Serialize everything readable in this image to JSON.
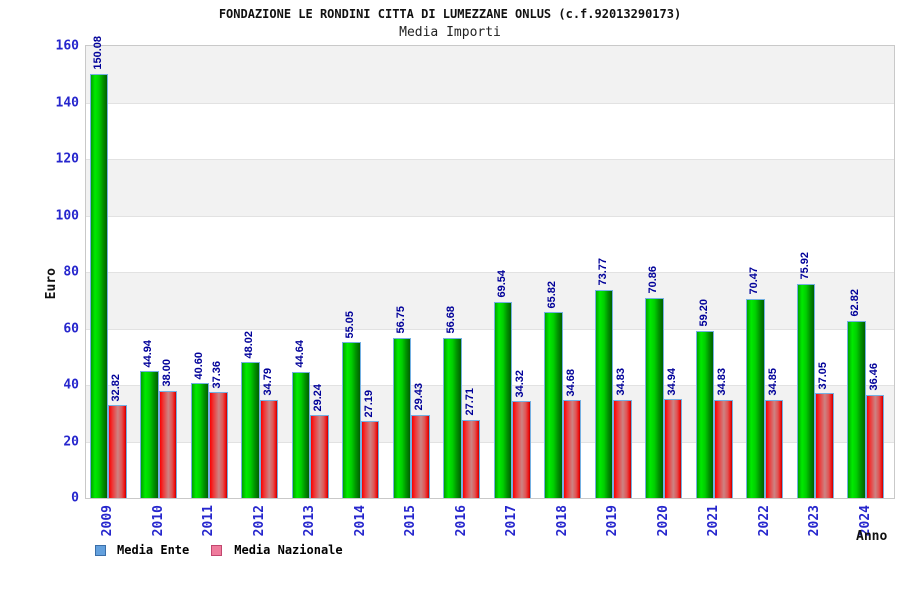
{
  "chart_data": {
    "type": "bar",
    "title": "FONDAZIONE LE RONDINI CITTA DI LUMEZZANE ONLUS (c.f.92013290173)",
    "subtitle": "Media Importi",
    "xlabel": "Anno",
    "ylabel": "Euro",
    "ylim": [
      0,
      160
    ],
    "yticks": [
      0,
      20,
      40,
      60,
      80,
      100,
      120,
      140,
      160
    ],
    "grid": "alternating horizontal bands every 20 units",
    "legend_position": "bottom-left",
    "value_label_decimals": 2,
    "categories": [
      "2009",
      "2010",
      "2011",
      "2012",
      "2013",
      "2014",
      "2015",
      "2016",
      "2017",
      "2018",
      "2019",
      "2020",
      "2021",
      "2022",
      "2023",
      "2024"
    ],
    "series": [
      {
        "name": "Media Ente",
        "bar_color": "#00cc00",
        "legend_swatch_color": "#63a0dd",
        "values": [
          150.08,
          44.94,
          40.6,
          48.02,
          44.64,
          55.05,
          56.75,
          56.68,
          69.54,
          65.82,
          73.77,
          70.86,
          59.2,
          70.47,
          75.92,
          62.82
        ]
      },
      {
        "name": "Media Nazionale",
        "bar_color": "#ee3333",
        "legend_swatch_color": "#ef7b9c",
        "values": [
          32.82,
          38.0,
          37.36,
          34.79,
          29.24,
          27.19,
          29.43,
          27.71,
          34.32,
          34.68,
          34.83,
          34.94,
          34.83,
          34.85,
          37.05,
          36.46
        ]
      }
    ]
  },
  "colors": {
    "axis_text": "#2626cd",
    "value_label_text": "#000099",
    "bar_outline": "#74b0e2",
    "band_gray": "#f2f2f2",
    "band_white": "#ffffff"
  }
}
